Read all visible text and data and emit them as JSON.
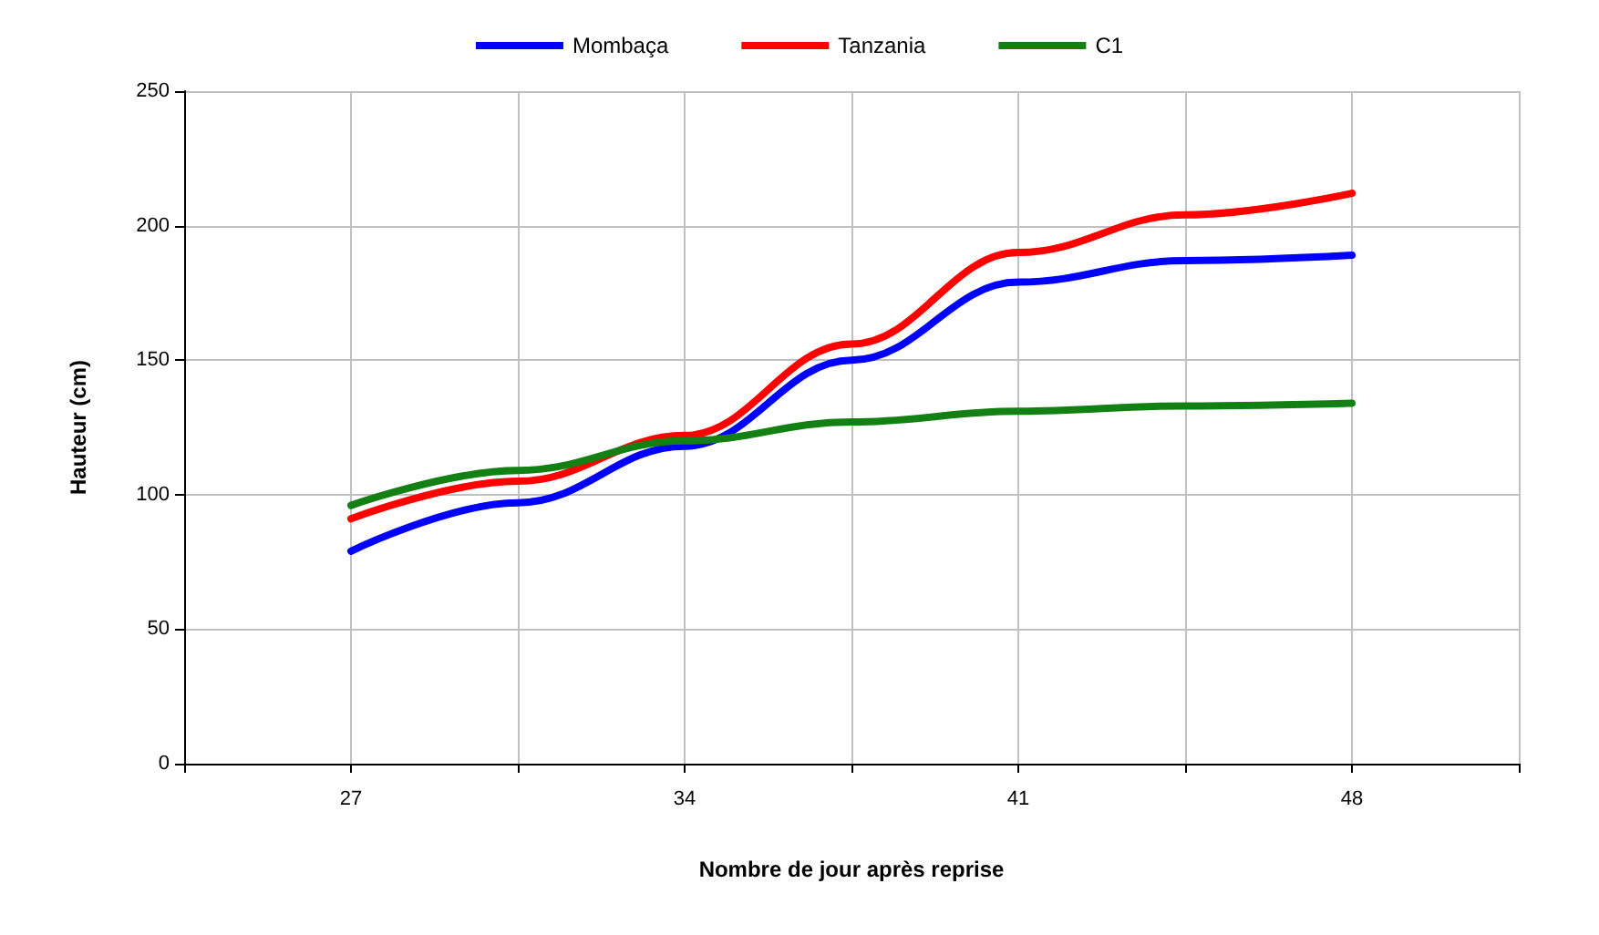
{
  "chart_data": {
    "type": "line",
    "xlabel": "Nombre de jour après reprise",
    "ylabel": "Hauteur (cm)",
    "x": [
      27,
      30.5,
      34,
      37.5,
      41,
      44.5,
      48
    ],
    "series": [
      {
        "name": "Mombaça",
        "color": "#0000ff",
        "values": [
          79,
          97,
          118,
          150,
          179,
          187,
          189
        ]
      },
      {
        "name": "Tanzania",
        "color": "#ff0000",
        "values": [
          91,
          105,
          122,
          156,
          190,
          204,
          212
        ]
      },
      {
        "name": "C1",
        "color": "#138013",
        "values": [
          96,
          109,
          120,
          127,
          131,
          133,
          134
        ]
      }
    ],
    "xlim": [
      23.5,
      51.5
    ],
    "xticks": [
      {
        "value": 23.5,
        "label": null
      },
      27,
      {
        "value": 30.5,
        "label": null
      },
      34,
      {
        "value": 37.5,
        "label": null
      },
      41,
      {
        "value": 44.5,
        "label": null
      },
      48,
      {
        "value": 51.5,
        "label": null
      }
    ],
    "ylim": [
      0,
      250
    ],
    "yticks": [
      0,
      50,
      100,
      150,
      200,
      250
    ],
    "grid": true,
    "legend": "top",
    "marker": "none",
    "line_style": "solid"
  }
}
